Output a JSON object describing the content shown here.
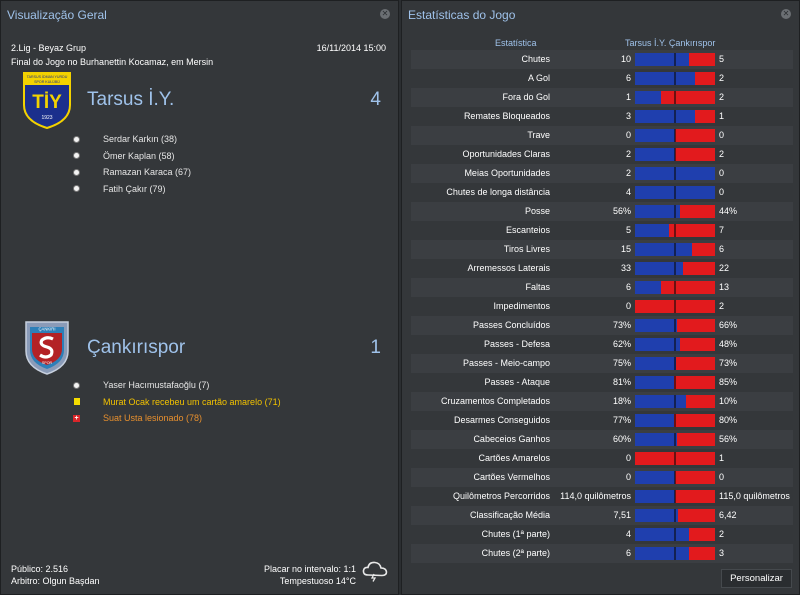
{
  "overview": {
    "title": "Visualização Geral",
    "competition": "2.Lig - Beyaz Grup",
    "datetime": "16/11/2014 15:00",
    "venue": "Final do Jogo no Burhanettin Kocamaz, em Mersin",
    "home": {
      "name": "Tarsus İ.Y.",
      "score": "4",
      "crest_text_top": "TARSUS İDMAN YURDU",
      "crest_text_sub": "SPOR KULÜBÜ",
      "crest_letters": "TİY",
      "crest_year": "1923",
      "events": [
        {
          "type": "goal",
          "text": "Serdar Karkın (38)"
        },
        {
          "type": "goal",
          "text": "Ömer Kaplan (58)"
        },
        {
          "type": "goal",
          "text": "Ramazan Karaca (67)"
        },
        {
          "type": "goal",
          "text": "Fatih Çakır (79)"
        }
      ]
    },
    "away": {
      "name": "Çankırıspor",
      "score": "1",
      "crest_text_top": "ÇANKIRI",
      "crest_text_bottom": "SPOR",
      "events": [
        {
          "type": "goal",
          "text": "Yaser Hacımustafaoğlu (7)"
        },
        {
          "type": "card",
          "text": "Murat Ocak recebeu um cartão amarelo (71)"
        },
        {
          "type": "injury",
          "text": "Suat Usta lesionado (78)"
        }
      ]
    },
    "attendance": "Público: 2.516",
    "referee": "Arbitro: Olgun Başdan",
    "halftime": "Placar no intervalo: 1:1",
    "weather": "Tempestuoso 14°C",
    "weather_icon": "cloud-lightning-icon"
  },
  "stats": {
    "title": "Estatísticas do Jogo",
    "col_stat": "Estatística",
    "col_teams": "Tarsus İ.Y. Çankırıspor",
    "customize_label": "Personalizar",
    "colors": {
      "home": "#1f3fae",
      "away": "#e21a1d"
    },
    "rows": [
      {
        "label": "Chutes",
        "home": "10",
        "away": "5",
        "home_share": 0.67
      },
      {
        "label": "A Gol",
        "home": "6",
        "away": "2",
        "home_share": 0.75
      },
      {
        "label": "Fora do Gol",
        "home": "1",
        "away": "2",
        "home_share": 0.33
      },
      {
        "label": "Remates Bloqueados",
        "home": "3",
        "away": "1",
        "home_share": 0.75
      },
      {
        "label": "Trave",
        "home": "0",
        "away": "0",
        "home_share": 0.5
      },
      {
        "label": "Oportunidades Claras",
        "home": "2",
        "away": "2",
        "home_share": 0.5
      },
      {
        "label": "Meias Oportunidades",
        "home": "2",
        "away": "0",
        "home_share": 1.0
      },
      {
        "label": "Chutes de longa distância",
        "home": "4",
        "away": "0",
        "home_share": 1.0
      },
      {
        "label": "Posse",
        "home": "56%",
        "away": "44%",
        "home_share": 0.56
      },
      {
        "label": "Escanteios",
        "home": "5",
        "away": "7",
        "home_share": 0.42
      },
      {
        "label": "Tiros Livres",
        "home": "15",
        "away": "6",
        "home_share": 0.71
      },
      {
        "label": "Arremessos Laterais",
        "home": "33",
        "away": "22",
        "home_share": 0.6
      },
      {
        "label": "Faltas",
        "home": "6",
        "away": "13",
        "home_share": 0.32
      },
      {
        "label": "Impedimentos",
        "home": "0",
        "away": "2",
        "home_share": 0.0
      },
      {
        "label": "Passes Concluídos",
        "home": "73%",
        "away": "66%",
        "home_share": 0.52
      },
      {
        "label": "Passes - Defesa",
        "home": "62%",
        "away": "48%",
        "home_share": 0.56
      },
      {
        "label": "Passes - Meio-campo",
        "home": "75%",
        "away": "73%",
        "home_share": 0.51
      },
      {
        "label": "Passes - Ataque",
        "home": "81%",
        "away": "85%",
        "home_share": 0.49
      },
      {
        "label": "Cruzamentos Completados",
        "home": "18%",
        "away": "10%",
        "home_share": 0.64
      },
      {
        "label": "Desarmes Conseguidos",
        "home": "77%",
        "away": "80%",
        "home_share": 0.49
      },
      {
        "label": "Cabeceios Ganhos",
        "home": "60%",
        "away": "56%",
        "home_share": 0.52
      },
      {
        "label": "Cartões Amarelos",
        "home": "0",
        "away": "1",
        "home_share": 0.0
      },
      {
        "label": "Cartões Vermelhos",
        "home": "0",
        "away": "0",
        "home_share": 0.5
      },
      {
        "label": "Quilômetros Percorridos",
        "home": "114,0 quilômetros",
        "away": "115,0 quilômetros",
        "home_share": 0.5
      },
      {
        "label": "Classificação Média",
        "home": "7,51",
        "away": "6,42",
        "home_share": 0.54
      },
      {
        "label": "Chutes (1ª parte)",
        "home": "4",
        "away": "2",
        "home_share": 0.67
      },
      {
        "label": "Chutes (2ª parte)",
        "home": "6",
        "away": "3",
        "home_share": 0.67
      }
    ]
  }
}
